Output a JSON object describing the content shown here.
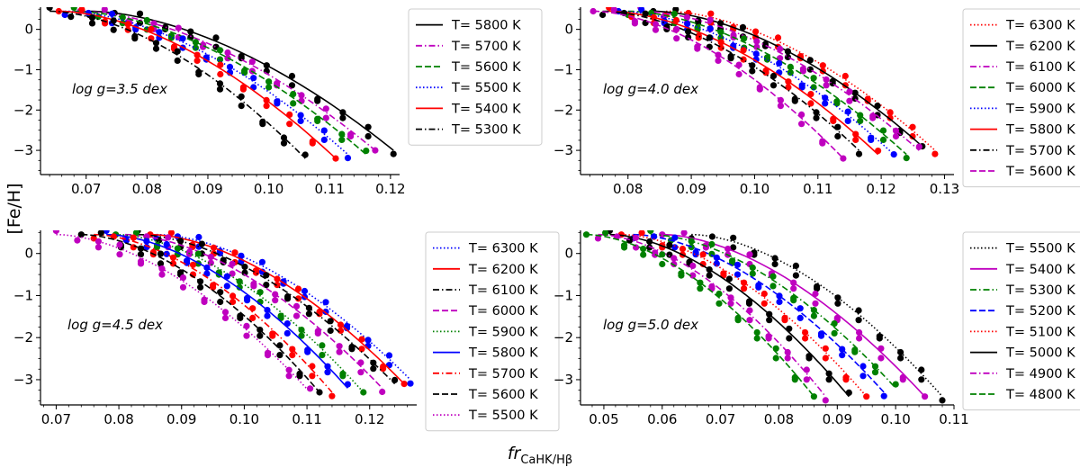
{
  "figure": {
    "ylabel": "[Fe/H]",
    "xlabel_main": "fr",
    "xlabel_sub": "CaHK/Hβ"
  },
  "chart_data": [
    {
      "type": "line",
      "title": "",
      "annotation": "log g=3.5 dex",
      "xlabel": "",
      "ylabel": "",
      "xlim": [
        0.0625,
        0.1215
      ],
      "ylim": [
        -3.6,
        0.55
      ],
      "xticks": [
        0.07,
        0.08,
        0.09,
        0.1,
        0.11,
        0.12
      ],
      "xtick_labels": [
        "0.07",
        "0.08",
        "0.09",
        "0.10",
        "0.11",
        "0.12"
      ],
      "yticks": [
        0,
        -1,
        -2,
        -3
      ],
      "ytick_labels": [
        "0",
        "−1",
        "−2",
        "−3"
      ],
      "legend_position": "top-right",
      "series": [
        {
          "name": "T= 5800 K",
          "color": "#000000",
          "dash": "solid",
          "x0": 0.0705,
          "x1": 0.1205,
          "y_end": -3.0
        },
        {
          "name": "T= 5700 K",
          "color": "#bf00bf",
          "dash": "dashdot",
          "x0": 0.069,
          "x1": 0.1175,
          "y_end": -3.0
        },
        {
          "name": "T= 5600 K",
          "color": "#008000",
          "dash": "dashed",
          "x0": 0.068,
          "x1": 0.116,
          "y_end": -3.1
        },
        {
          "name": "T= 5500 K",
          "color": "#0000ff",
          "dash": "dotted",
          "x0": 0.0665,
          "x1": 0.113,
          "y_end": -3.1
        },
        {
          "name": "T= 5400 K",
          "color": "#ff0000",
          "dash": "solid",
          "x0": 0.0655,
          "x1": 0.111,
          "y_end": -3.2
        },
        {
          "name": "T= 5300 K",
          "color": "#000000",
          "dash": "dashdot",
          "x0": 0.064,
          "x1": 0.106,
          "y_end": -3.2
        }
      ]
    },
    {
      "type": "line",
      "title": "",
      "annotation": "log g=4.0 dex",
      "xlabel": "",
      "ylabel": "",
      "xlim": [
        0.0725,
        0.1315
      ],
      "ylim": [
        -3.6,
        0.55
      ],
      "xticks": [
        0.08,
        0.09,
        0.1,
        0.11,
        0.12,
        0.13
      ],
      "xtick_labels": [
        "0.08",
        "0.09",
        "0.10",
        "0.11",
        "0.12",
        "0.13"
      ],
      "yticks": [
        0,
        -1,
        -2,
        -3
      ],
      "ytick_labels": [
        "0",
        "−1",
        "−2",
        "−3"
      ],
      "legend_position": "top-right",
      "series": [
        {
          "name": "T= 6300 K",
          "color": "#ff0000",
          "dash": "dotted",
          "x0": 0.086,
          "x1": 0.1285,
          "y_end": -3.0
        },
        {
          "name": "T= 6200 K",
          "color": "#000000",
          "dash": "solid",
          "x0": 0.084,
          "x1": 0.1265,
          "y_end": -2.9
        },
        {
          "name": "T= 6100 K",
          "color": "#bf00bf",
          "dash": "dashdot",
          "x0": 0.082,
          "x1": 0.126,
          "y_end": -3.0
        },
        {
          "name": "T= 6000 K",
          "color": "#008000",
          "dash": "dashed",
          "x0": 0.08,
          "x1": 0.124,
          "y_end": -3.1
        },
        {
          "name": "T= 5900 K",
          "color": "#0000ff",
          "dash": "dotted",
          "x0": 0.0785,
          "x1": 0.122,
          "y_end": -3.1
        },
        {
          "name": "T= 5800 K",
          "color": "#ff0000",
          "dash": "solid",
          "x0": 0.077,
          "x1": 0.1195,
          "y_end": -3.1
        },
        {
          "name": "T= 5700 K",
          "color": "#000000",
          "dash": "dashdot",
          "x0": 0.076,
          "x1": 0.1165,
          "y_end": -3.0
        },
        {
          "name": "T= 5600 K",
          "color": "#bf00bf",
          "dash": "dashed",
          "x0": 0.0745,
          "x1": 0.114,
          "y_end": -3.2
        }
      ]
    },
    {
      "type": "line",
      "title": "",
      "annotation": "log g=4.5 dex",
      "xlabel": "",
      "ylabel": "",
      "xlim": [
        0.0675,
        0.1275
      ],
      "ylim": [
        -3.6,
        0.55
      ],
      "xticks": [
        0.07,
        0.08,
        0.09,
        0.1,
        0.11,
        0.12
      ],
      "xtick_labels": [
        "0.07",
        "0.08",
        "0.09",
        "0.10",
        "0.11",
        "0.12"
      ],
      "yticks": [
        0,
        -1,
        -2,
        -3
      ],
      "ytick_labels": [
        "0",
        "−1",
        "−2",
        "−3"
      ],
      "legend_position": "top-right",
      "series": [
        {
          "name": "T= 6300 K",
          "color": "#0000ff",
          "dash": "dotted",
          "x0": 0.086,
          "x1": 0.1265,
          "y_end": -3.0
        },
        {
          "name": "T= 6200 K",
          "color": "#ff0000",
          "dash": "solid",
          "x0": 0.085,
          "x1": 0.1255,
          "y_end": -3.1
        },
        {
          "name": "T= 6100 K",
          "color": "#000000",
          "dash": "dashdot",
          "x0": 0.083,
          "x1": 0.124,
          "y_end": -3.1
        },
        {
          "name": "T= 6000 K",
          "color": "#bf00bf",
          "dash": "dashed",
          "x0": 0.081,
          "x1": 0.122,
          "y_end": -3.2
        },
        {
          "name": "T= 5900 K",
          "color": "#008000",
          "dash": "dotted",
          "x0": 0.0795,
          "x1": 0.119,
          "y_end": -3.3
        },
        {
          "name": "T= 5800 K",
          "color": "#0000ff",
          "dash": "solid",
          "x0": 0.078,
          "x1": 0.1165,
          "y_end": -3.2
        },
        {
          "name": "T= 5700 K",
          "color": "#ff0000",
          "dash": "dashdot",
          "x0": 0.076,
          "x1": 0.114,
          "y_end": -3.3
        },
        {
          "name": "T= 5600 K",
          "color": "#000000",
          "dash": "dashed",
          "x0": 0.074,
          "x1": 0.112,
          "y_end": -3.3
        },
        {
          "name": "T= 5500 K",
          "color": "#bf00bf",
          "dash": "dotted",
          "x0": 0.07,
          "x1": 0.1105,
          "y_end": -3.3
        }
      ]
    },
    {
      "type": "line",
      "title": "",
      "annotation": "log g=5.0 dex",
      "xlabel": "",
      "ylabel": "",
      "xlim": [
        0.046,
        0.11
      ],
      "ylim": [
        -3.6,
        0.55
      ],
      "xticks": [
        0.05,
        0.06,
        0.07,
        0.08,
        0.09,
        0.1,
        0.11
      ],
      "xtick_labels": [
        "0.05",
        "0.06",
        "0.07",
        "0.08",
        "0.09",
        "0.10",
        "0.11"
      ],
      "yticks": [
        0,
        -1,
        -2,
        -3
      ],
      "ytick_labels": [
        "0",
        "−1",
        "−2",
        "−3"
      ],
      "legend_position": "top-right",
      "series": [
        {
          "name": "T= 5500 K",
          "color": "#000000",
          "dash": "dotted",
          "x0": 0.065,
          "x1": 0.108,
          "y_end": -3.4
        },
        {
          "name": "T= 5400 K",
          "color": "#bf00bf",
          "dash": "solid",
          "x0": 0.06,
          "x1": 0.105,
          "y_end": -3.4
        },
        {
          "name": "T= 5300 K",
          "color": "#008000",
          "dash": "dashdot",
          "x0": 0.058,
          "x1": 0.1,
          "y_end": -3.2
        },
        {
          "name": "T= 5200 K",
          "color": "#0000ff",
          "dash": "dashed",
          "x0": 0.055,
          "x1": 0.098,
          "y_end": -3.3
        },
        {
          "name": "T= 5100 K",
          "color": "#ff0000",
          "dash": "dotted",
          "x0": 0.053,
          "x1": 0.095,
          "y_end": -3.4
        },
        {
          "name": "T= 5000 K",
          "color": "#000000",
          "dash": "solid",
          "x0": 0.051,
          "x1": 0.092,
          "y_end": -3.4
        },
        {
          "name": "T= 4900 K",
          "color": "#bf00bf",
          "dash": "dashdot",
          "x0": 0.049,
          "x1": 0.088,
          "y_end": -3.4
        },
        {
          "name": "T= 4800 K",
          "color": "#008000",
          "dash": "dashed",
          "x0": 0.047,
          "x1": 0.086,
          "y_end": -3.4
        }
      ]
    }
  ]
}
